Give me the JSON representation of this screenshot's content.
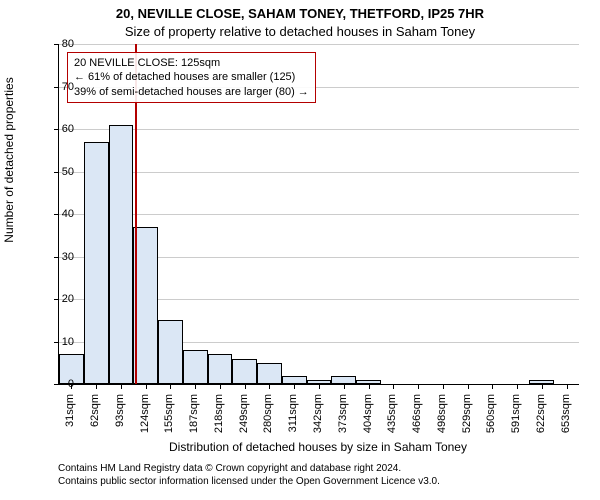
{
  "chart": {
    "type": "histogram",
    "title_line1": "20, NEVILLE CLOSE, SAHAM TONEY, THETFORD, IP25 7HR",
    "title_line2": "Size of property relative to detached houses in Saham Toney",
    "title_fontsize": 13,
    "ylabel": "Number of detached properties",
    "xlabel": "Distribution of detached houses by size in Saham Toney",
    "label_fontsize": 12,
    "tick_fontsize": 11,
    "background_color": "#ffffff",
    "grid_color": "#cccccc",
    "axis_color": "#000000",
    "bar_fill": "#dbe7f5",
    "bar_stroke": "#000000",
    "ylim": [
      0,
      80
    ],
    "ytick_step": 10,
    "xticks": [
      "31sqm",
      "62sqm",
      "93sqm",
      "124sqm",
      "155sqm",
      "187sqm",
      "218sqm",
      "249sqm",
      "280sqm",
      "311sqm",
      "342sqm",
      "373sqm",
      "404sqm",
      "435sqm",
      "466sqm",
      "498sqm",
      "529sqm",
      "560sqm",
      "591sqm",
      "622sqm",
      "653sqm"
    ],
    "values": [
      7,
      57,
      61,
      37,
      15,
      8,
      7,
      6,
      5,
      2,
      1,
      2,
      1,
      0,
      0,
      0,
      0,
      0,
      0,
      1,
      0
    ],
    "reference_line": {
      "x_index": 3,
      "value_label": "125sqm",
      "color": "#b30000"
    },
    "callout": {
      "line1": "20 NEVILLE CLOSE: 125sqm",
      "line2": "← 61% of detached houses are smaller (125)",
      "line3": "39% of semi-detached houses are larger (80) →",
      "border_color": "#b30000"
    }
  },
  "footer": {
    "line1": "Contains HM Land Registry data © Crown copyright and database right 2024.",
    "line2": "Contains public sector information licensed under the Open Government Licence v3.0."
  }
}
